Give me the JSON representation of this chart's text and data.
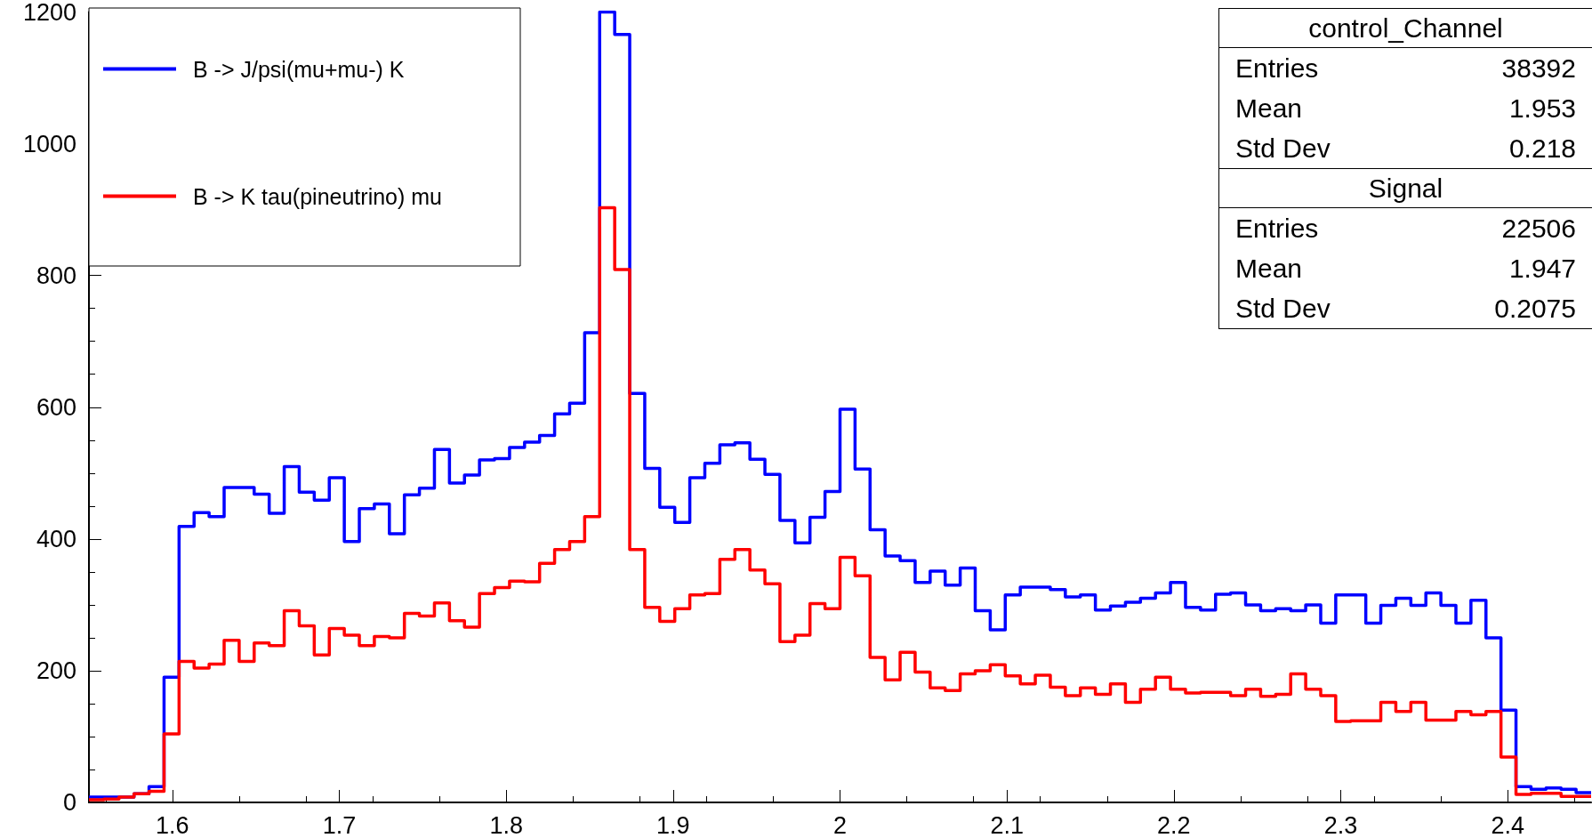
{
  "chart_data": {
    "type": "histogram",
    "bins": [
      1.55,
      1.559,
      1.568,
      1.577,
      1.586,
      1.595,
      1.604,
      1.613,
      1.622,
      1.631,
      1.64,
      1.649,
      1.658,
      1.667,
      1.676,
      1.685,
      1.694,
      1.703,
      1.712,
      1.721,
      1.73,
      1.739,
      1.748,
      1.757,
      1.766,
      1.775,
      1.784,
      1.793,
      1.802,
      1.811,
      1.82,
      1.829,
      1.838,
      1.847,
      1.856,
      1.865,
      1.874,
      1.883,
      1.892,
      1.901,
      1.91,
      1.919,
      1.928,
      1.937,
      1.946,
      1.955,
      1.964,
      1.973,
      1.982,
      1.991,
      2,
      2.009,
      2.018,
      2.027,
      2.036,
      2.045,
      2.054,
      2.063,
      2.072,
      2.081,
      2.09,
      2.099,
      2.108,
      2.117,
      2.126,
      2.135,
      2.144,
      2.153,
      2.162,
      2.171,
      2.18,
      2.189,
      2.198,
      2.207,
      2.216,
      2.225,
      2.234,
      2.243,
      2.252,
      2.261,
      2.27,
      2.279,
      2.288,
      2.297,
      2.306,
      2.315,
      2.324,
      2.333,
      2.342,
      2.351,
      2.36,
      2.369,
      2.378,
      2.387,
      2.396,
      2.405,
      2.414,
      2.423,
      2.432,
      2.441,
      2.45
    ],
    "series": [
      {
        "name": "B -> J/psi(mu+mu-) K",
        "color": "#0000ff",
        "values": [
          8,
          8,
          8,
          13,
          24,
          190,
          419,
          440,
          434,
          478,
          478,
          468,
          439,
          510,
          471,
          459,
          493,
          396,
          446,
          453,
          408,
          467,
          477,
          536,
          485,
          497,
          520,
          522,
          539,
          547,
          557,
          590,
          606,
          713,
          1200,
          1166,
          621,
          507,
          448,
          425,
          493,
          515,
          543,
          546,
          521,
          498,
          428,
          394,
          433,
          472,
          597,
          506,
          414,
          374,
          367,
          334,
          351,
          330,
          356,
          291,
          262,
          315,
          327,
          327,
          323,
          312,
          315,
          292,
          298,
          304,
          310,
          318,
          334,
          296,
          292,
          316,
          318,
          300,
          291,
          294,
          291,
          300,
          272,
          315,
          315,
          272,
          299,
          310,
          299,
          318,
          299,
          272,
          307,
          250,
          140,
          24,
          20,
          22,
          20,
          15
        ]
      },
      {
        "name": "B -> K tau(pineutrino) mu",
        "color": "#ff0000",
        "values": [
          4,
          5,
          8,
          13,
          17,
          104,
          214,
          204,
          210,
          246,
          214,
          242,
          238,
          291,
          268,
          224,
          264,
          254,
          238,
          252,
          250,
          287,
          283,
          303,
          276,
          266,
          317,
          326,
          336,
          335,
          363,
          384,
          396,
          434,
          903,
          809,
          384,
          296,
          275,
          294,
          315,
          317,
          369,
          384,
          353,
          332,
          244,
          254,
          302,
          294,
          372,
          344,
          220,
          186,
          228,
          198,
          174,
          170,
          195,
          200,
          209,
          192,
          180,
          193,
          175,
          162,
          174,
          164,
          180,
          152,
          172,
          190,
          172,
          166,
          167,
          167,
          162,
          172,
          161,
          164,
          195,
          172,
          162,
          123,
          124,
          124,
          152,
          138,
          152,
          125,
          125,
          138,
          133,
          138,
          69,
          12,
          14,
          14,
          9,
          9
        ]
      }
    ],
    "xlim": [
      1.55,
      2.45
    ],
    "xticks": [
      1.6,
      1.7,
      1.8,
      1.9,
      2,
      2.1,
      2.2,
      2.3,
      2.4
    ],
    "ylim": [
      0,
      1200
    ],
    "yticks": [
      0,
      200,
      400,
      600,
      800,
      1000,
      1200
    ],
    "grid": false,
    "legend": "top left",
    "annotations": [
      "control_Channel",
      "Entries 38392",
      "Mean 1.953",
      "Std Dev 0.218",
      "Signal",
      "Entries 22506",
      "Mean 1.947",
      "Std Dev 0.2075"
    ]
  }
}
